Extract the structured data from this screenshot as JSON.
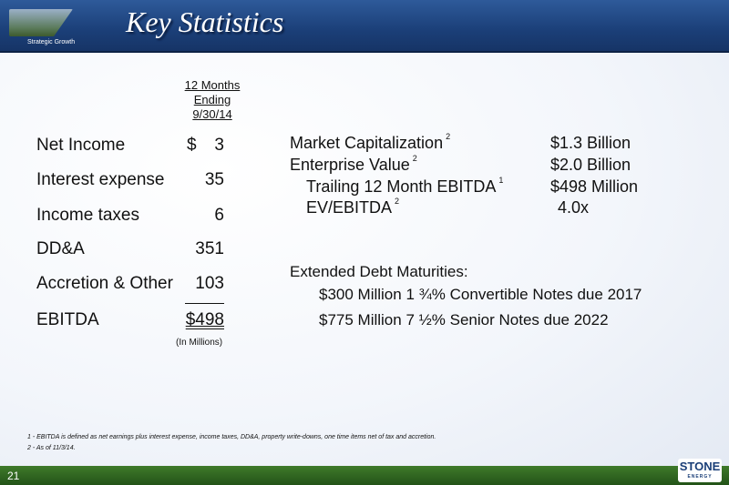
{
  "header": {
    "title": "Key Statistics",
    "tagline": "Strategic Growth"
  },
  "table": {
    "column_header": [
      "12 Months",
      "Ending",
      "9/30/14"
    ],
    "rows": [
      {
        "label": "Net Income",
        "value": "3"
      },
      {
        "label": "Interest expense",
        "value": "35"
      },
      {
        "label": "Income taxes",
        "value": "6"
      },
      {
        "label": "DD&A",
        "value": "351"
      },
      {
        "label": "Accretion & Other",
        "value": "103"
      },
      {
        "label": "EBITDA",
        "value": "$498"
      }
    ],
    "currency_symbol": "$",
    "units_note": "(In Millions)"
  },
  "stats": [
    {
      "label": "Market Capitalization",
      "footnote": "2",
      "value": "$1.3 Billion"
    },
    {
      "label": "Enterprise Value",
      "footnote": "2",
      "value": "$2.0 Billion"
    },
    {
      "label": "Trailing 12 Month EBITDA",
      "footnote": "1",
      "value": "$498 Million"
    },
    {
      "label": "EV/EBITDA",
      "footnote": "2",
      "value": "4.0x"
    }
  ],
  "debt": {
    "heading": "Extended Debt Maturities:",
    "items": [
      "$300 Million  1 ¾% Convertible Notes due 2017",
      "$775 Million  7 ½% Senior Notes due 2022"
    ]
  },
  "footnotes": [
    "1 - EBITDA is defined as net earnings plus interest expense, income taxes, DD&A, property write-downs, one time items net of tax and accretion.",
    "2 - As of 11/3/14."
  ],
  "footer": {
    "page_number": "21",
    "logo_text": "STONE",
    "logo_sub": "ENERGY"
  }
}
